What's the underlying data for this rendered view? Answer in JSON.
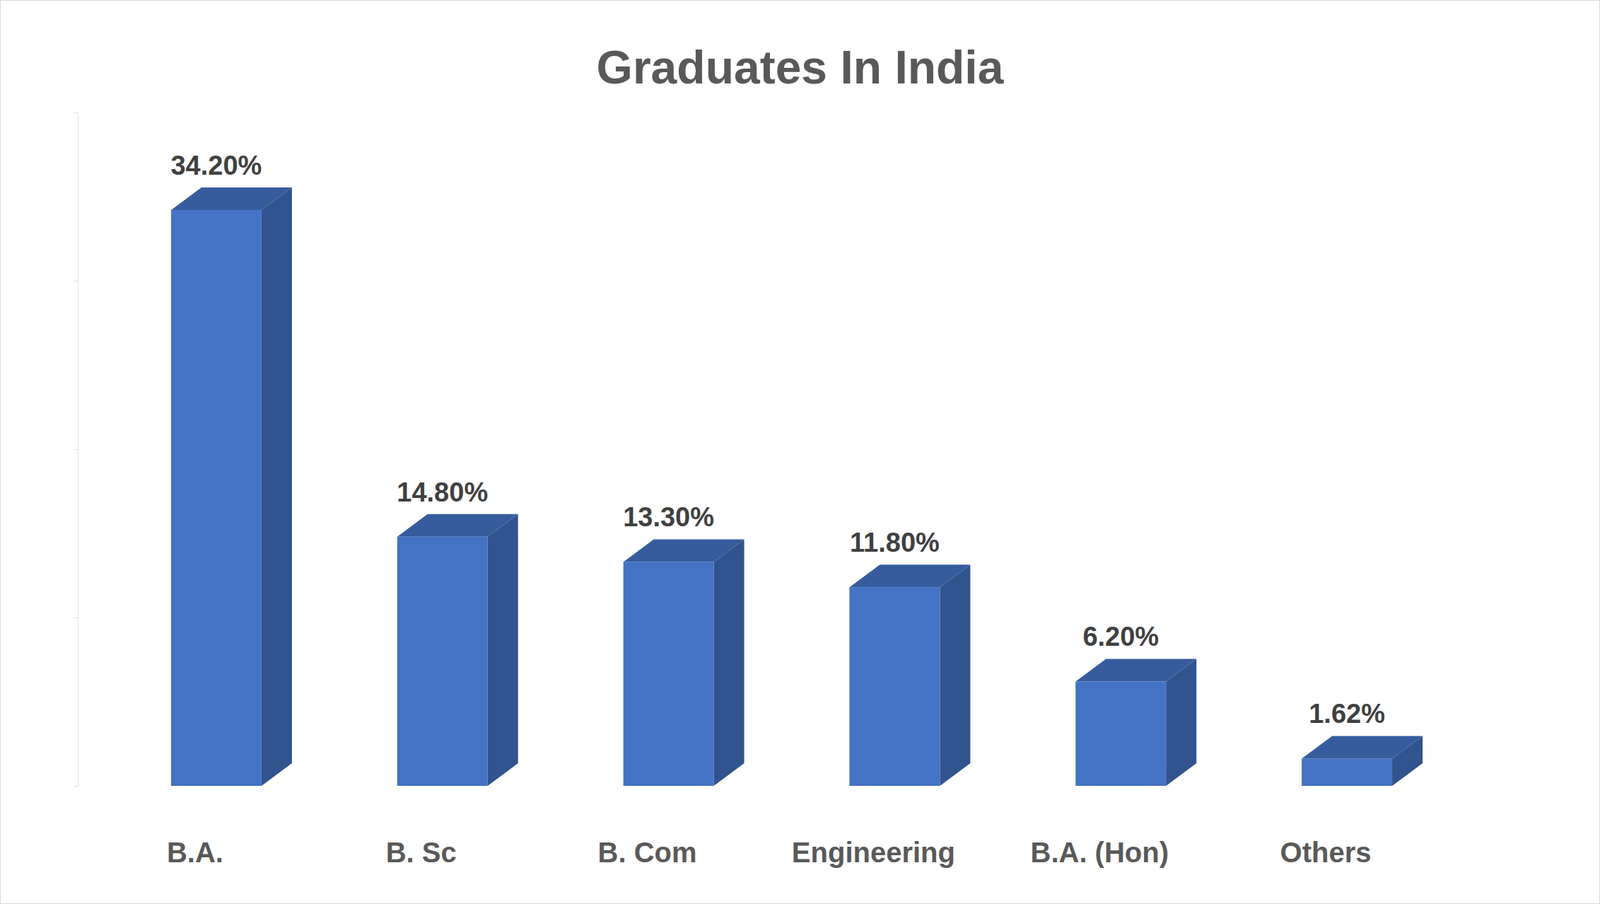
{
  "chart_data": {
    "type": "bar",
    "title": "Graduates In India",
    "categories": [
      "B.A.",
      "B. Sc",
      "B. Com",
      "Engineering",
      "B.A. (Hon)",
      "Others"
    ],
    "values": [
      34.2,
      14.8,
      13.3,
      11.8,
      6.2,
      1.62
    ],
    "value_labels": [
      "34.20%",
      "14.80%",
      "13.30%",
      "11.80%",
      "6.20%",
      "1.62%"
    ],
    "color": "#4472c4",
    "ylim": [
      0,
      40
    ],
    "yticks": [
      0,
      10,
      20,
      30,
      40
    ],
    "grid": false,
    "data_labels": true,
    "tick_labels": "x"
  }
}
